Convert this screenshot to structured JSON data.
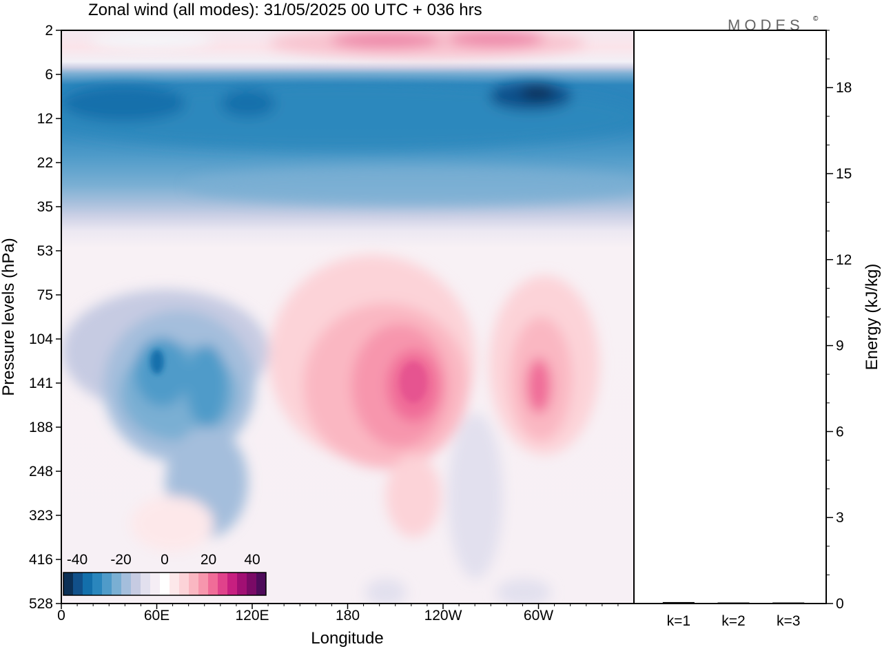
{
  "logo_text": "MODES",
  "logo_mark": "©",
  "chart_data": [
    {
      "type": "heatmap",
      "title": "Zonal wind (all modes):  31/05/2025  00 UTC  + 036 hrs",
      "xlabel": "Longitude",
      "ylabel": "Pressure levels (hPa)",
      "x_ticks": [
        "0",
        "60E",
        "120E",
        "180",
        "120W",
        "60W"
      ],
      "x_tick_degrees": [
        0,
        60,
        120,
        180,
        240,
        300
      ],
      "xlim": [
        0,
        360
      ],
      "y_ticks": [
        "2",
        "6",
        "12",
        "22",
        "35",
        "53",
        "75",
        "104",
        "141",
        "188",
        "248",
        "323",
        "416",
        "528"
      ],
      "y_scale": "model levels (top 2 hPa, bottom 528 hPa)",
      "colorbar": {
        "ticks": [
          "-40",
          "-20",
          "0",
          "20",
          "40"
        ],
        "range": [
          -40,
          40
        ],
        "colors": [
          "#0b2f55",
          "#11508a",
          "#136fab",
          "#2a86bd",
          "#4f9bc9",
          "#7aafd3",
          "#a4bedc",
          "#c6cbe2",
          "#e2e0ee",
          "#f5eef5",
          "#ffffff",
          "#fde8ea",
          "#fcd3d8",
          "#fab7c2",
          "#f796ad",
          "#f06c98",
          "#e0428b",
          "#c71f80",
          "#a10f73",
          "#7a0a66",
          "#4e0b5a"
        ]
      },
      "features": [
        {
          "name": "stratospheric easterly jet",
          "level": "6-35 hPa",
          "min_value": -40
        },
        {
          "name": "upper westerlies",
          "level": "2-6 hPa",
          "max_value": 25
        },
        {
          "name": "upper-tropospheric easterlies",
          "longitude": "60E-120E",
          "level": "104-188 hPa",
          "min_value": -35
        },
        {
          "name": "westerly maximum",
          "longitude": "near 150W",
          "level": "141 hPa",
          "max_value": 25
        },
        {
          "name": "westerly maximum",
          "longitude": "near 65W",
          "level": "141 hPa",
          "max_value": 20
        }
      ]
    },
    {
      "type": "bar",
      "ylabel": "Energy (kJ/kg)",
      "categories": [
        "k=1",
        "k=2",
        "k=3"
      ],
      "values": [
        0.05,
        0.03,
        0.02
      ],
      "ylim": [
        0,
        20
      ],
      "y_ticks": [
        "0",
        "3",
        "6",
        "9",
        "12",
        "15",
        "18"
      ],
      "y_tick_values": [
        0,
        3,
        6,
        9,
        12,
        15,
        18
      ],
      "y_minor_step": 1
    }
  ]
}
